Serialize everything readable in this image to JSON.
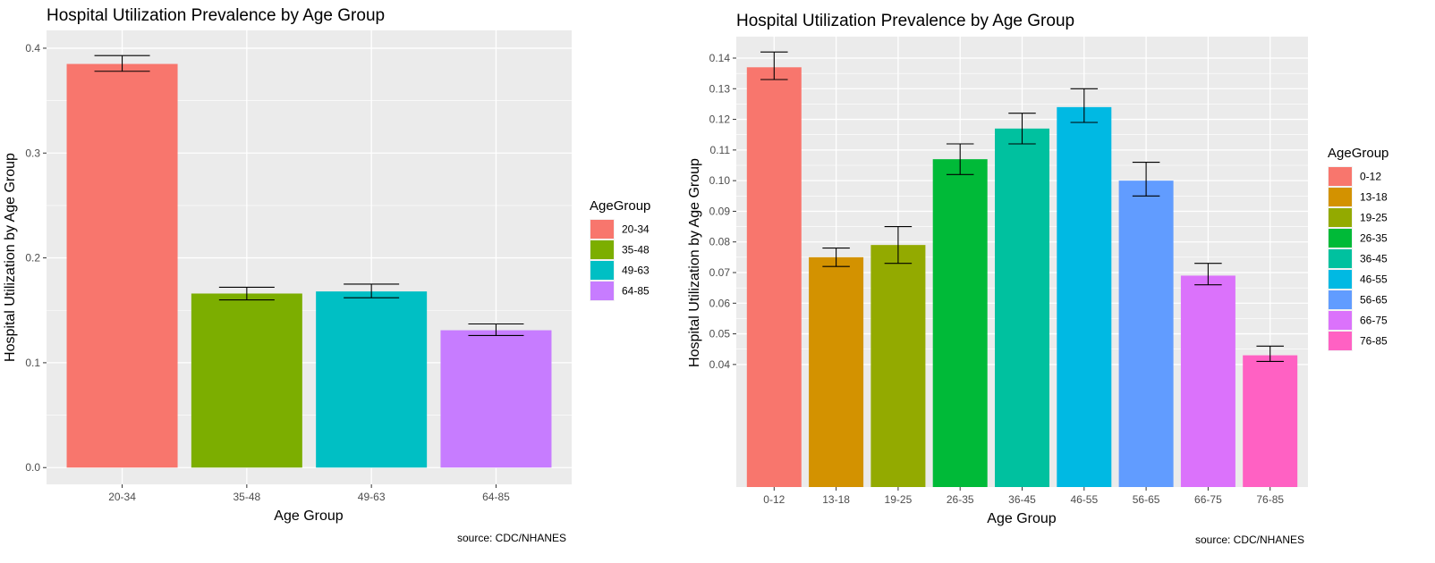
{
  "charts": [
    {
      "caption": "source: CDC/NHANES",
      "legend": {
        "title": "AgeGroup"
      },
      "chart_data": {
        "type": "bar",
        "title": "Hospital Utilization Prevalence by Age Group",
        "xlabel": "Age Group",
        "ylabel": "Hospital Utilization by Age Group",
        "categories": [
          "20-34",
          "35-48",
          "49-63",
          "64-85"
        ],
        "values": [
          0.385,
          0.166,
          0.168,
          0.131
        ],
        "error_low": [
          0.378,
          0.16,
          0.162,
          0.126
        ],
        "error_high": [
          0.393,
          0.172,
          0.175,
          0.137
        ],
        "colors": [
          "#F8766D",
          "#7CAE00",
          "#00BFC4",
          "#C77CFF"
        ],
        "ylim": [
          -0.016,
          0.417
        ],
        "yticks": [
          0.0,
          0.1,
          0.2,
          0.3,
          0.4
        ],
        "ytick_labels": [
          "0.0",
          "0.1",
          "0.2",
          "0.3",
          "0.4"
        ],
        "grid": true,
        "legend_position": "right"
      }
    },
    {
      "caption": "source: CDC/NHANES",
      "legend": {
        "title": "AgeGroup"
      },
      "chart_data": {
        "type": "bar",
        "title": "Hospital Utilization Prevalence by Age Group",
        "xlabel": "Age Group",
        "ylabel": "Hospital Utilization by Age Group",
        "categories": [
          "0-12",
          "13-18",
          "19-25",
          "26-35",
          "36-45",
          "46-55",
          "56-65",
          "66-75",
          "76-85"
        ],
        "values": [
          0.137,
          0.075,
          0.079,
          0.107,
          0.117,
          0.124,
          0.1,
          0.069,
          0.043
        ],
        "error_low": [
          0.133,
          0.072,
          0.073,
          0.102,
          0.112,
          0.119,
          0.095,
          0.066,
          0.041
        ],
        "error_high": [
          0.142,
          0.078,
          0.085,
          0.112,
          0.122,
          0.13,
          0.106,
          0.073,
          0.046
        ],
        "colors": [
          "#F8766D",
          "#D39200",
          "#93AA00",
          "#00BA38",
          "#00C19F",
          "#00B9E3",
          "#619CFF",
          "#DB72FB",
          "#FF61C3"
        ],
        "ylim": [
          0.0,
          0.147
        ],
        "yticks": [
          0.04,
          0.05,
          0.06,
          0.07,
          0.08,
          0.09,
          0.1,
          0.11,
          0.12,
          0.13,
          0.14
        ],
        "ytick_labels": [
          "0.04",
          "0.05",
          "0.06",
          "0.07",
          "0.08",
          "0.09",
          "0.10",
          "0.11",
          "0.12",
          "0.13",
          "0.14"
        ],
        "grid": true,
        "legend_position": "right"
      }
    }
  ]
}
